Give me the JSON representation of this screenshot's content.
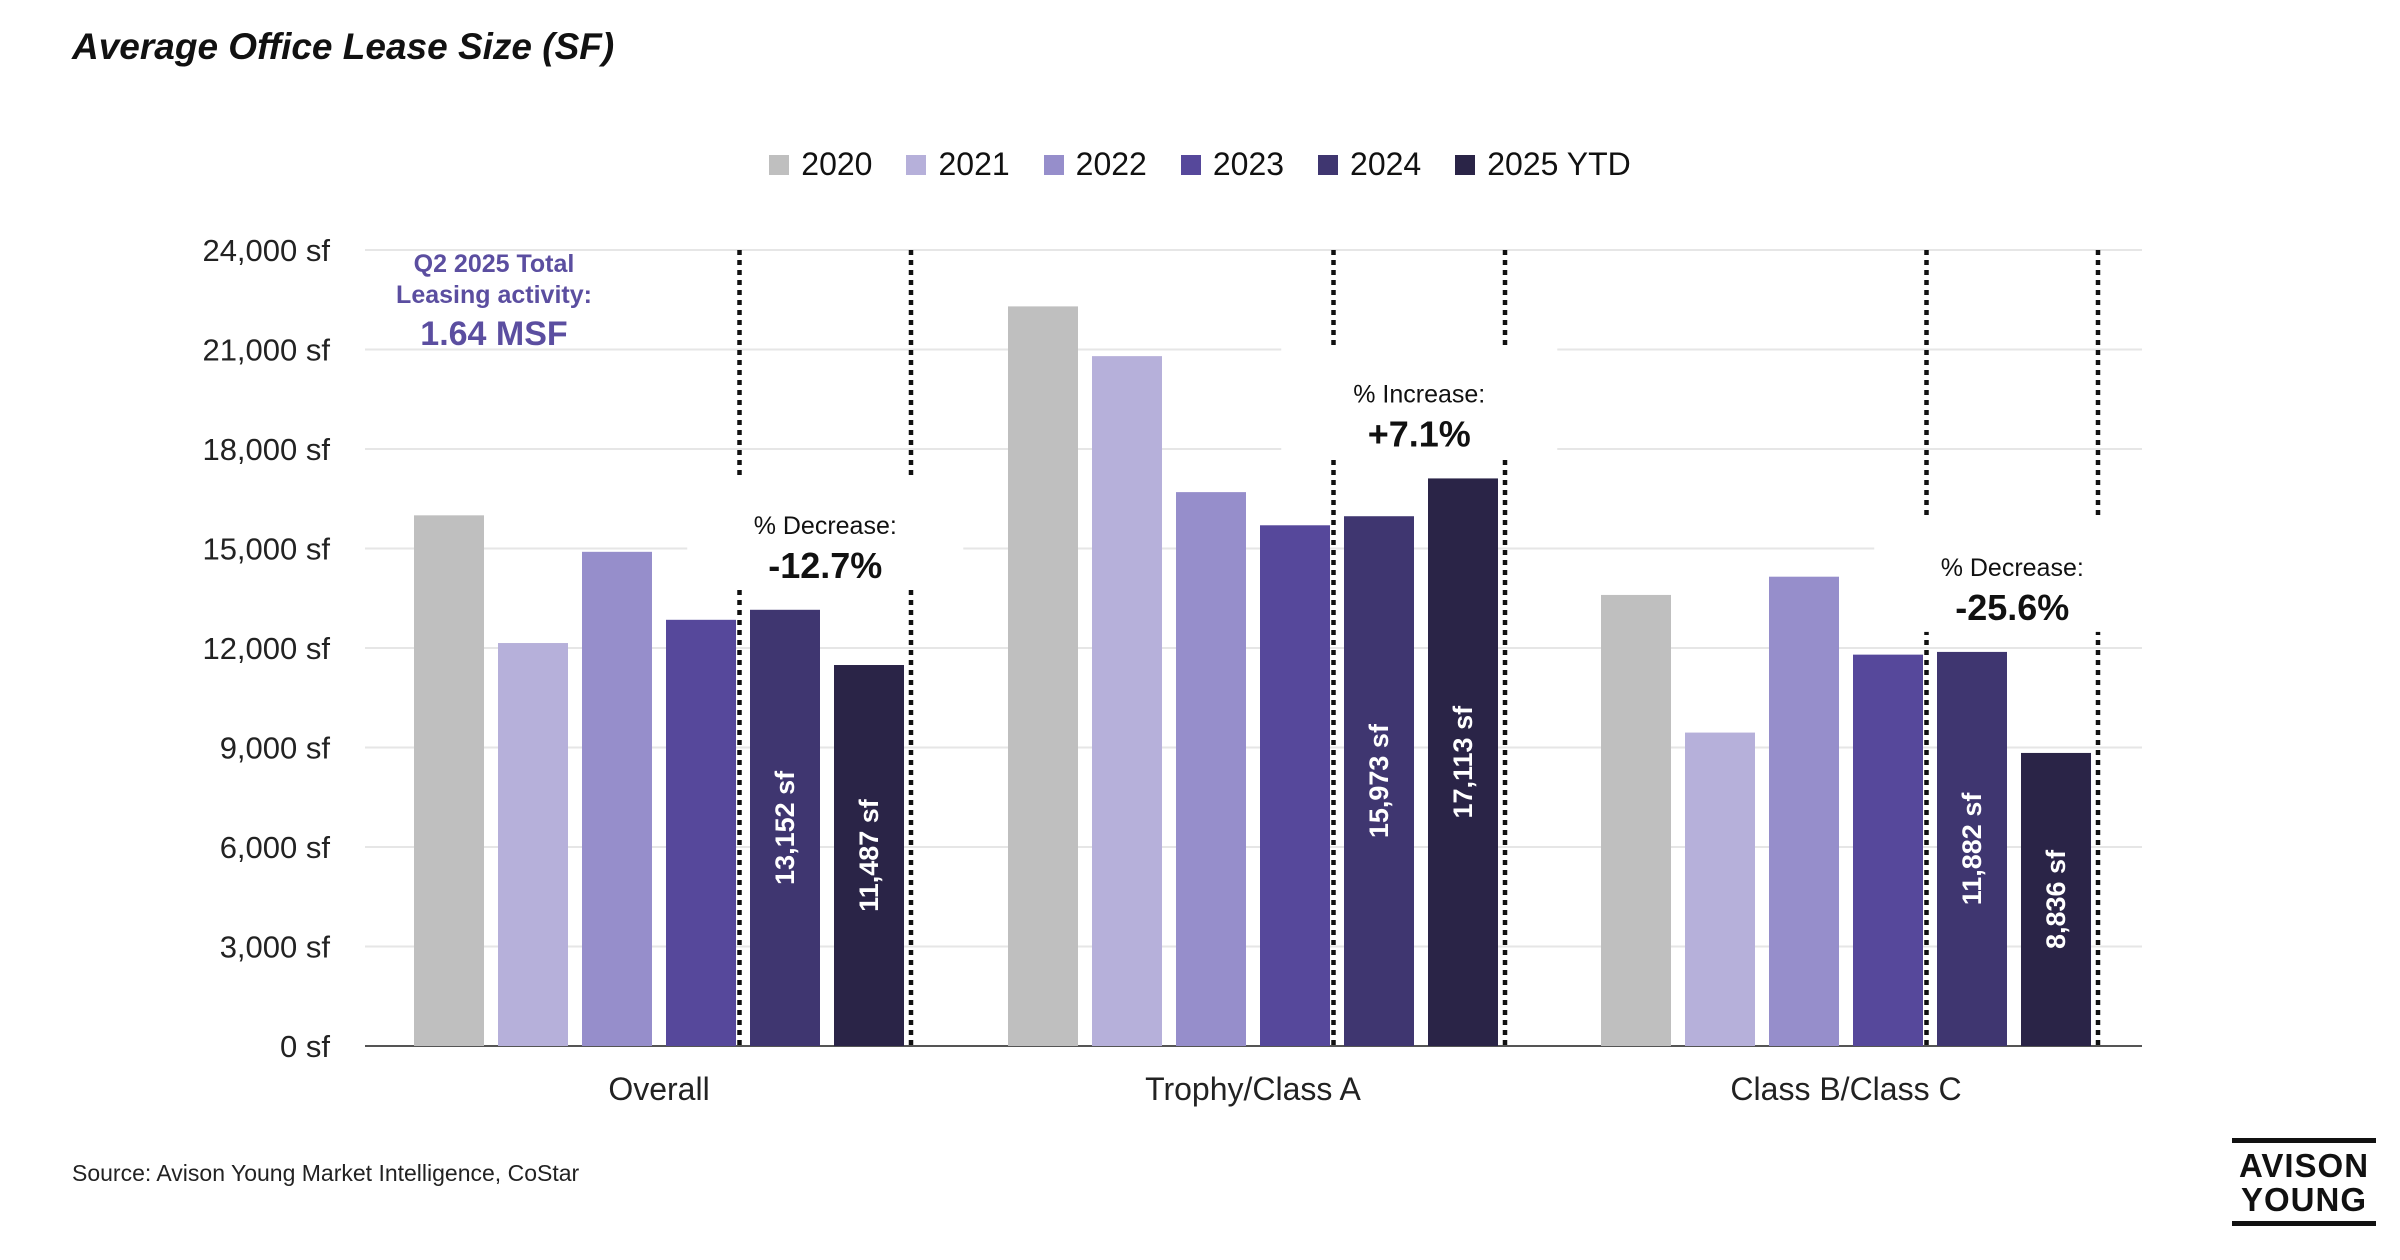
{
  "title": "Average Office Lease Size (SF)",
  "source": "Source: Avison Young Market Intelligence, CoStar",
  "logo": {
    "line1": "AVISON",
    "line2": "YOUNG"
  },
  "colors": {
    "2020": "#bfbfbf",
    "2021": "#b6b0da",
    "2022": "#968ecb",
    "2023": "#56489b",
    "2024": "#3f3670",
    "2025 YTD": "#2a2447",
    "accent": "#5b4ea0",
    "axis": "#555555",
    "grid": "#e6e6e6"
  },
  "chart_data": {
    "type": "bar",
    "title": "Average Office Lease Size (SF)",
    "xlabel": "",
    "ylabel": "",
    "ylim": [
      0,
      24000
    ],
    "y_ticks": [
      0,
      3000,
      6000,
      9000,
      12000,
      15000,
      18000,
      21000,
      24000
    ],
    "y_tick_labels": [
      "0 sf",
      "3,000 sf",
      "6,000 sf",
      "9,000 sf",
      "12,000 sf",
      "15,000 sf",
      "18,000 sf",
      "21,000 sf",
      "24,000 sf"
    ],
    "grid": true,
    "legend_position": "top-center",
    "categories": [
      "Overall",
      "Trophy/Class A",
      "Class B/Class C"
    ],
    "series": [
      {
        "name": "2020",
        "values": [
          16000,
          22300,
          13600
        ]
      },
      {
        "name": "2021",
        "values": [
          12150,
          20800,
          9450
        ]
      },
      {
        "name": "2022",
        "values": [
          14900,
          16700,
          14150
        ]
      },
      {
        "name": "2023",
        "values": [
          12850,
          15700,
          11800
        ]
      },
      {
        "name": "2024",
        "values": [
          13152,
          15973,
          11882
        ],
        "labels": [
          "13,152 sf",
          "15,973 sf",
          "11,882 sf"
        ]
      },
      {
        "name": "2025 YTD",
        "values": [
          11487,
          17113,
          8836
        ],
        "labels": [
          "11,487 sf",
          "17,113 sf",
          "8,836 sf"
        ]
      }
    ],
    "change_annotations": [
      {
        "category": "Overall",
        "label": "% Decrease:",
        "value": "-12.7%"
      },
      {
        "category": "Trophy/Class A",
        "label": "% Increase:",
        "value": "+7.1%"
      },
      {
        "category": "Class B/Class C",
        "label": "% Decrease:",
        "value": "-25.6%"
      }
    ],
    "callout": {
      "line1": "Q2 2025 Total",
      "line2": "Leasing activity:",
      "line3": "1.64 MSF"
    }
  }
}
